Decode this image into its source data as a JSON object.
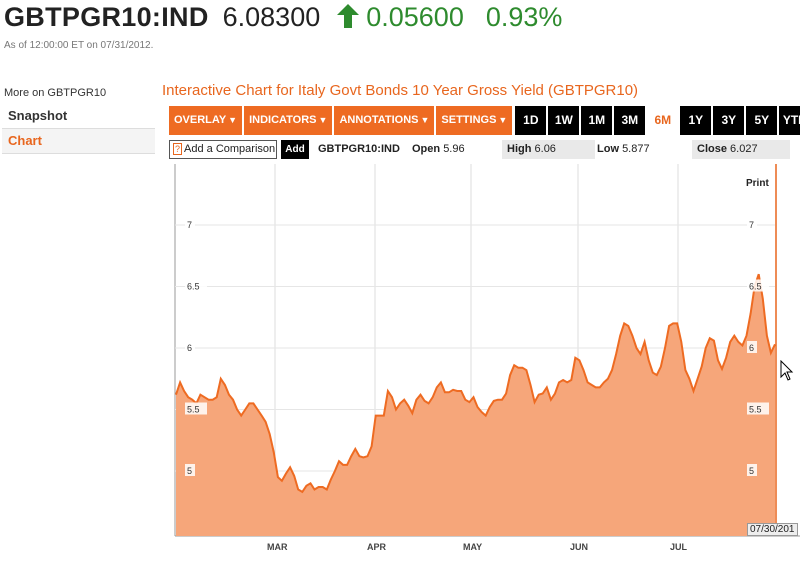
{
  "header": {
    "ticker": "GBTPGR10:IND",
    "price": "6.08300",
    "change": "0.05600",
    "change_pct": "0.93%",
    "as_of": "As of 12:00:00 ET on 07/31/2012."
  },
  "colors": {
    "accent": "#e8661e",
    "up": "#2e8b2e",
    "series_fill": "#f6a67a",
    "series_line": "#ee6b22"
  },
  "sidebar": {
    "more_on": "More on GBTPGR10",
    "items": [
      {
        "label": "Snapshot"
      },
      {
        "label": "Chart"
      }
    ]
  },
  "chart_title": "Interactive Chart for Italy Govt Bonds 10 Year Gross Yield (GBTPGR10)",
  "toolbar": {
    "menus": [
      "OVERLAY",
      "INDICATORS",
      "ANNOTATIONS",
      "SETTINGS"
    ],
    "caret": "▼",
    "periods": [
      "1D",
      "1W",
      "1M",
      "3M",
      "6M",
      "1Y",
      "3Y",
      "5Y",
      "YTD"
    ],
    "active_period": "6M"
  },
  "comparison": {
    "q": "?",
    "placeholder": "Add a Comparison",
    "add_label": "Add",
    "symbol": "GBTPGR10:IND",
    "open_label": "Open",
    "open_value": "5.96",
    "high_label": "High",
    "high_value": "6.06",
    "low_label": "Low",
    "low_value": "5.877",
    "close_label": "Close",
    "close_value": "6.027"
  },
  "print_label": "Print",
  "date_tag": "07/30/201",
  "chart_data": {
    "type": "area",
    "x_tick_labels": [
      "MAR",
      "APR",
      "MAY",
      "JUN",
      "JUL"
    ],
    "y_ticks": [
      "5",
      "5.5",
      "6",
      "6.5",
      "7"
    ],
    "ylim": [
      4.5,
      7.2
    ],
    "grid": true,
    "values": [
      5.62,
      5.72,
      5.65,
      5.6,
      5.58,
      5.55,
      5.62,
      5.6,
      5.58,
      5.58,
      5.6,
      5.75,
      5.7,
      5.62,
      5.58,
      5.5,
      5.45,
      5.5,
      5.55,
      5.55,
      5.5,
      5.45,
      5.4,
      5.3,
      5.15,
      4.95,
      4.92,
      4.98,
      5.03,
      4.96,
      4.85,
      4.83,
      4.88,
      4.9,
      4.85,
      4.87,
      4.87,
      4.85,
      4.93,
      5.0,
      5.08,
      5.05,
      5.05,
      5.12,
      5.18,
      5.12,
      5.11,
      5.12,
      5.2,
      5.45,
      5.45,
      5.45,
      5.65,
      5.6,
      5.5,
      5.55,
      5.58,
      5.53,
      5.47,
      5.58,
      5.62,
      5.57,
      5.55,
      5.6,
      5.68,
      5.72,
      5.64,
      5.64,
      5.66,
      5.65,
      5.65,
      5.58,
      5.56,
      5.6,
      5.52,
      5.48,
      5.45,
      5.52,
      5.57,
      5.58,
      5.58,
      5.63,
      5.78,
      5.86,
      5.84,
      5.84,
      5.82,
      5.7,
      5.56,
      5.62,
      5.63,
      5.68,
      5.58,
      5.63,
      5.72,
      5.74,
      5.72,
      5.74,
      5.92,
      5.9,
      5.82,
      5.72,
      5.7,
      5.68,
      5.68,
      5.72,
      5.75,
      5.82,
      5.95,
      6.1,
      6.2,
      6.18,
      6.1,
      6.0,
      5.95,
      6.05,
      5.9,
      5.8,
      5.78,
      5.85,
      6.0,
      6.18,
      6.2,
      6.2,
      6.05,
      5.82,
      5.75,
      5.65,
      5.75,
      5.85,
      6.0,
      6.08,
      6.06,
      5.9,
      5.83,
      5.92,
      6.05,
      6.1,
      6.05,
      6.02,
      6.1,
      6.28,
      6.5,
      6.6,
      6.4,
      6.1,
      5.96,
      6.03
    ]
  }
}
